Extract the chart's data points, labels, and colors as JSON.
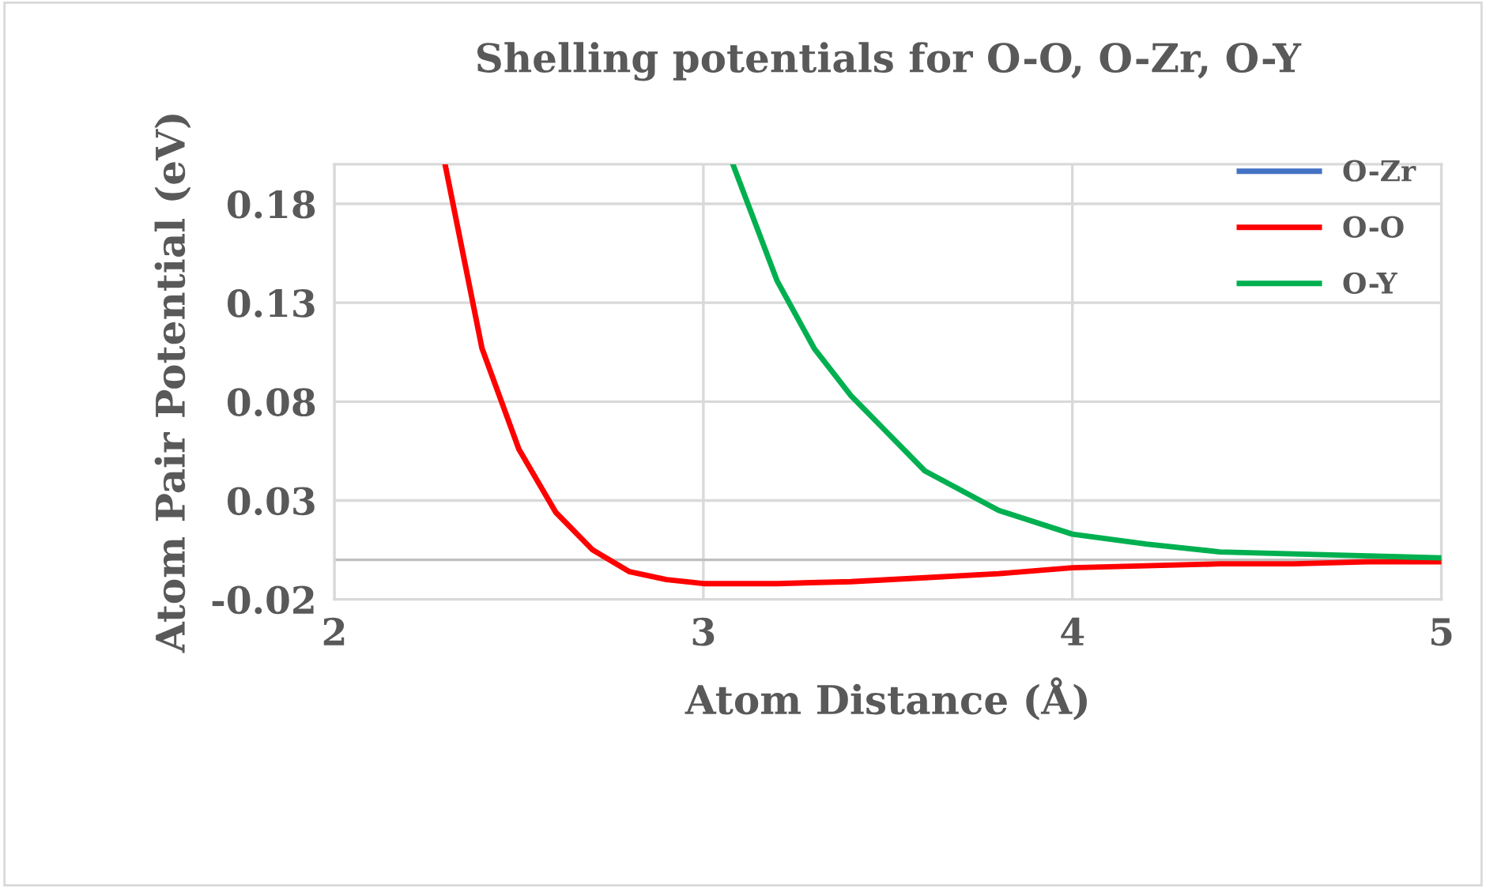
{
  "chart_data": {
    "type": "line",
    "title": "Shelling potentials for O-O, O-Zr, O-Y",
    "xlabel": "Atom Distance (Å)",
    "ylabel": "Atom Pair Potential (eV)",
    "xlim": [
      2,
      5
    ],
    "xticks": [
      2,
      3,
      4,
      5
    ],
    "ylim": [
      -0.02,
      0.2
    ],
    "yticks": [
      -0.02,
      0.03,
      0.08,
      0.13,
      0.18
    ],
    "grid": true,
    "legend": "top right",
    "marker": "none",
    "line_style": "solid",
    "ref_lines": [
      {
        "axis": "y",
        "value": 0,
        "color": "#bfbfbf"
      }
    ],
    "series": [
      {
        "name": "O-Zr",
        "color": "#4472c4"
      },
      {
        "name": "O-O",
        "color": "#ff0000",
        "x": [
          2.3,
          2.4,
          2.5,
          2.6,
          2.7,
          2.8,
          2.9,
          3.0,
          3.2,
          3.4,
          3.6,
          3.8,
          4.0,
          4.2,
          4.4,
          4.6,
          4.8,
          5.0
        ],
        "values": [
          0.2,
          0.107,
          0.056,
          0.024,
          0.005,
          -0.006,
          -0.01,
          -0.012,
          -0.012,
          -0.011,
          -0.009,
          -0.007,
          -0.004,
          -0.003,
          -0.002,
          -0.002,
          -0.001,
          -0.001
        ]
      },
      {
        "name": "O-Y",
        "color": "#00b050",
        "x": [
          3.08,
          3.2,
          3.3,
          3.4,
          3.5,
          3.6,
          3.8,
          4.0,
          4.2,
          4.4,
          4.6,
          4.8,
          5.0
        ],
        "values": [
          0.2,
          0.141,
          0.107,
          0.083,
          0.064,
          0.045,
          0.025,
          0.013,
          0.008,
          0.004,
          0.003,
          0.002,
          0.001
        ]
      }
    ]
  }
}
